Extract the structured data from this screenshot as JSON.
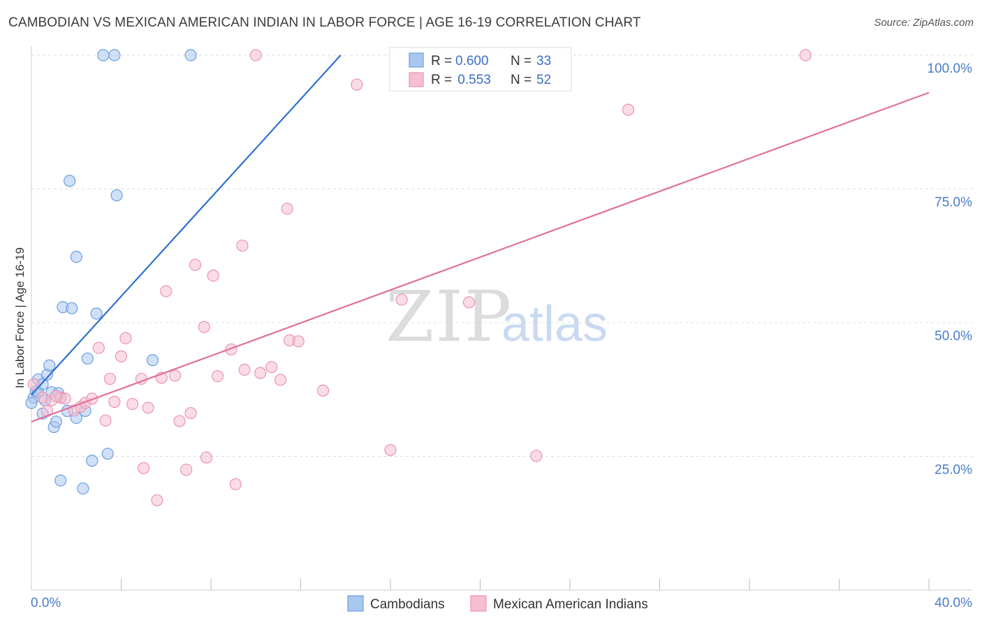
{
  "title": "CAMBODIAN VS MEXICAN AMERICAN INDIAN IN LABOR FORCE | AGE 16-19 CORRELATION CHART",
  "source": "Source: ZipAtlas.com",
  "watermark": {
    "zip": "ZIP",
    "atlas": "atlas"
  },
  "colors": {
    "blue_fill": "#a9c8f0",
    "blue_stroke": "#6d9de0",
    "blue_line": "#2f6fd1",
    "pink_fill": "#f6bfd0",
    "pink_stroke": "#eb94b1",
    "pink_line": "#e0709a",
    "grid": "#dddddd",
    "tick_text": "#4a7cc7"
  },
  "chart_data": {
    "type": "scatter",
    "title": "CAMBODIAN VS MEXICAN AMERICAN INDIAN IN LABOR FORCE | AGE 16-19 CORRELATION CHART",
    "xlabel": "",
    "ylabel": "In Labor Force | Age 16-19",
    "xlim": [
      0,
      40
    ],
    "ylim": [
      0,
      100
    ],
    "x_tick_labels": [
      "0.0%",
      "40.0%"
    ],
    "y_ticks": [
      25,
      50,
      75,
      100
    ],
    "y_tick_labels": [
      "25.0%",
      "50.0%",
      "75.0%",
      "100.0%"
    ],
    "legend": [
      {
        "r_label": "R =",
        "r_value": "0.600",
        "n_label": "N =",
        "n_value": "33"
      },
      {
        "r_label": "R =",
        "r_value": " 0.553",
        "n_label": "N =",
        "n_value": "52"
      }
    ],
    "series": [
      {
        "name": "Cambodians",
        "color": "#a9c8f0",
        "trend": {
          "x1": 0.0,
          "y1": 36.5,
          "x2": 14.0,
          "y2": 101.0
        },
        "points": [
          {
            "x": 0.1,
            "y": 36.0
          },
          {
            "x": 0.2,
            "y": 37.2
          },
          {
            "x": 0.3,
            "y": 39.4
          },
          {
            "x": 0.3,
            "y": 37.0
          },
          {
            "x": 0.5,
            "y": 33.0
          },
          {
            "x": 0.5,
            "y": 38.5
          },
          {
            "x": 0.6,
            "y": 35.5
          },
          {
            "x": 0.7,
            "y": 40.3
          },
          {
            "x": 0.8,
            "y": 42.0
          },
          {
            "x": 0.9,
            "y": 37.0
          },
          {
            "x": 1.0,
            "y": 30.5
          },
          {
            "x": 1.1,
            "y": 31.5
          },
          {
            "x": 1.2,
            "y": 36.8
          },
          {
            "x": 1.3,
            "y": 36.0
          },
          {
            "x": 1.3,
            "y": 20.5
          },
          {
            "x": 1.4,
            "y": 52.9
          },
          {
            "x": 1.6,
            "y": 33.5
          },
          {
            "x": 1.7,
            "y": 76.5
          },
          {
            "x": 1.8,
            "y": 52.7
          },
          {
            "x": 2.0,
            "y": 32.2
          },
          {
            "x": 2.0,
            "y": 62.3
          },
          {
            "x": 2.3,
            "y": 19.0
          },
          {
            "x": 2.4,
            "y": 33.5
          },
          {
            "x": 2.5,
            "y": 43.3
          },
          {
            "x": 2.7,
            "y": 24.2
          },
          {
            "x": 2.9,
            "y": 51.7
          },
          {
            "x": 3.2,
            "y": 100.0
          },
          {
            "x": 3.4,
            "y": 25.5
          },
          {
            "x": 3.7,
            "y": 100.0
          },
          {
            "x": 3.8,
            "y": 73.8
          },
          {
            "x": 5.4,
            "y": 43.0
          },
          {
            "x": 7.1,
            "y": 100.0
          },
          {
            "x": 0.0,
            "y": 35.0
          }
        ]
      },
      {
        "name": "Mexican American Indians",
        "color": "#f6bfd0",
        "trend": {
          "x1": 0.0,
          "y1": 31.5,
          "x2": 40.0,
          "y2": 93.0
        },
        "points": [
          {
            "x": 0.1,
            "y": 38.5
          },
          {
            "x": 0.5,
            "y": 36.0
          },
          {
            "x": 0.7,
            "y": 33.5
          },
          {
            "x": 0.9,
            "y": 35.5
          },
          {
            "x": 1.3,
            "y": 36.0
          },
          {
            "x": 1.5,
            "y": 35.8
          },
          {
            "x": 1.9,
            "y": 33.6
          },
          {
            "x": 2.2,
            "y": 34.3
          },
          {
            "x": 2.4,
            "y": 35.0
          },
          {
            "x": 2.7,
            "y": 35.8
          },
          {
            "x": 3.0,
            "y": 45.3
          },
          {
            "x": 3.3,
            "y": 31.7
          },
          {
            "x": 3.5,
            "y": 39.5
          },
          {
            "x": 3.7,
            "y": 35.2
          },
          {
            "x": 4.0,
            "y": 43.7
          },
          {
            "x": 4.2,
            "y": 47.1
          },
          {
            "x": 4.5,
            "y": 34.8
          },
          {
            "x": 4.9,
            "y": 39.5
          },
          {
            "x": 5.0,
            "y": 22.8
          },
          {
            "x": 5.2,
            "y": 34.1
          },
          {
            "x": 5.6,
            "y": 16.8
          },
          {
            "x": 5.8,
            "y": 39.7
          },
          {
            "x": 6.0,
            "y": 55.9
          },
          {
            "x": 6.4,
            "y": 40.1
          },
          {
            "x": 6.6,
            "y": 31.6
          },
          {
            "x": 6.9,
            "y": 22.5
          },
          {
            "x": 7.1,
            "y": 33.1
          },
          {
            "x": 7.3,
            "y": 60.8
          },
          {
            "x": 7.7,
            "y": 49.2
          },
          {
            "x": 7.8,
            "y": 24.8
          },
          {
            "x": 8.1,
            "y": 58.8
          },
          {
            "x": 8.3,
            "y": 40.0
          },
          {
            "x": 8.9,
            "y": 45.0
          },
          {
            "x": 9.1,
            "y": 19.8
          },
          {
            "x": 9.4,
            "y": 64.4
          },
          {
            "x": 9.5,
            "y": 41.2
          },
          {
            "x": 10.0,
            "y": 100.0
          },
          {
            "x": 10.2,
            "y": 40.6
          },
          {
            "x": 10.7,
            "y": 41.7
          },
          {
            "x": 11.1,
            "y": 39.3
          },
          {
            "x": 11.4,
            "y": 71.3
          },
          {
            "x": 11.5,
            "y": 46.7
          },
          {
            "x": 11.9,
            "y": 46.5
          },
          {
            "x": 13.0,
            "y": 37.3
          },
          {
            "x": 14.5,
            "y": 94.5
          },
          {
            "x": 16.0,
            "y": 26.2
          },
          {
            "x": 16.5,
            "y": 54.3
          },
          {
            "x": 19.5,
            "y": 53.8
          },
          {
            "x": 22.5,
            "y": 25.1
          },
          {
            "x": 26.6,
            "y": 89.8
          },
          {
            "x": 34.5,
            "y": 100.0
          },
          {
            "x": 1.1,
            "y": 36.3
          }
        ]
      }
    ]
  }
}
